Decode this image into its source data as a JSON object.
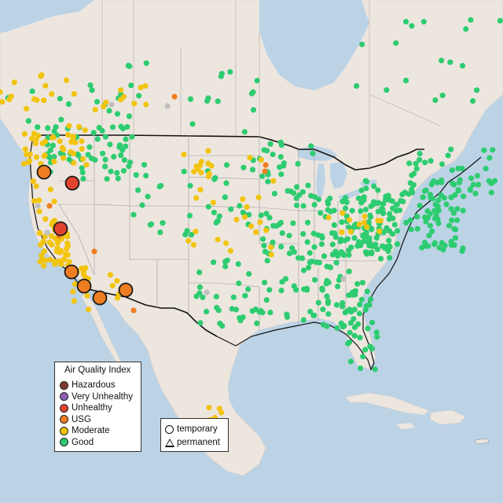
{
  "legend": {
    "title": "Air Quality Index",
    "items": [
      {
        "label": "Hazardous",
        "color": "#7e3b2f"
      },
      {
        "label": "Very Unhealthy",
        "color": "#8f5fb3"
      },
      {
        "label": "Unhealthy",
        "color": "#e2432f"
      },
      {
        "label": "USG",
        "color": "#ef7d22"
      },
      {
        "label": "Moderate",
        "color": "#f2c40f"
      },
      {
        "label": "Good",
        "color": "#2ecc71"
      }
    ]
  },
  "monitor_types": {
    "items": [
      {
        "label": "temporary",
        "shape": "circle"
      },
      {
        "label": "permanent",
        "shape": "triangle"
      }
    ]
  },
  "colors": {
    "water": "#bcd3e6",
    "land": "#ede6df",
    "good": "#2ecc71",
    "moderate": "#f2c40f",
    "usg": "#ef7d22",
    "unhealthy": "#e2432f",
    "unknown": "#bfbfbf"
  }
}
